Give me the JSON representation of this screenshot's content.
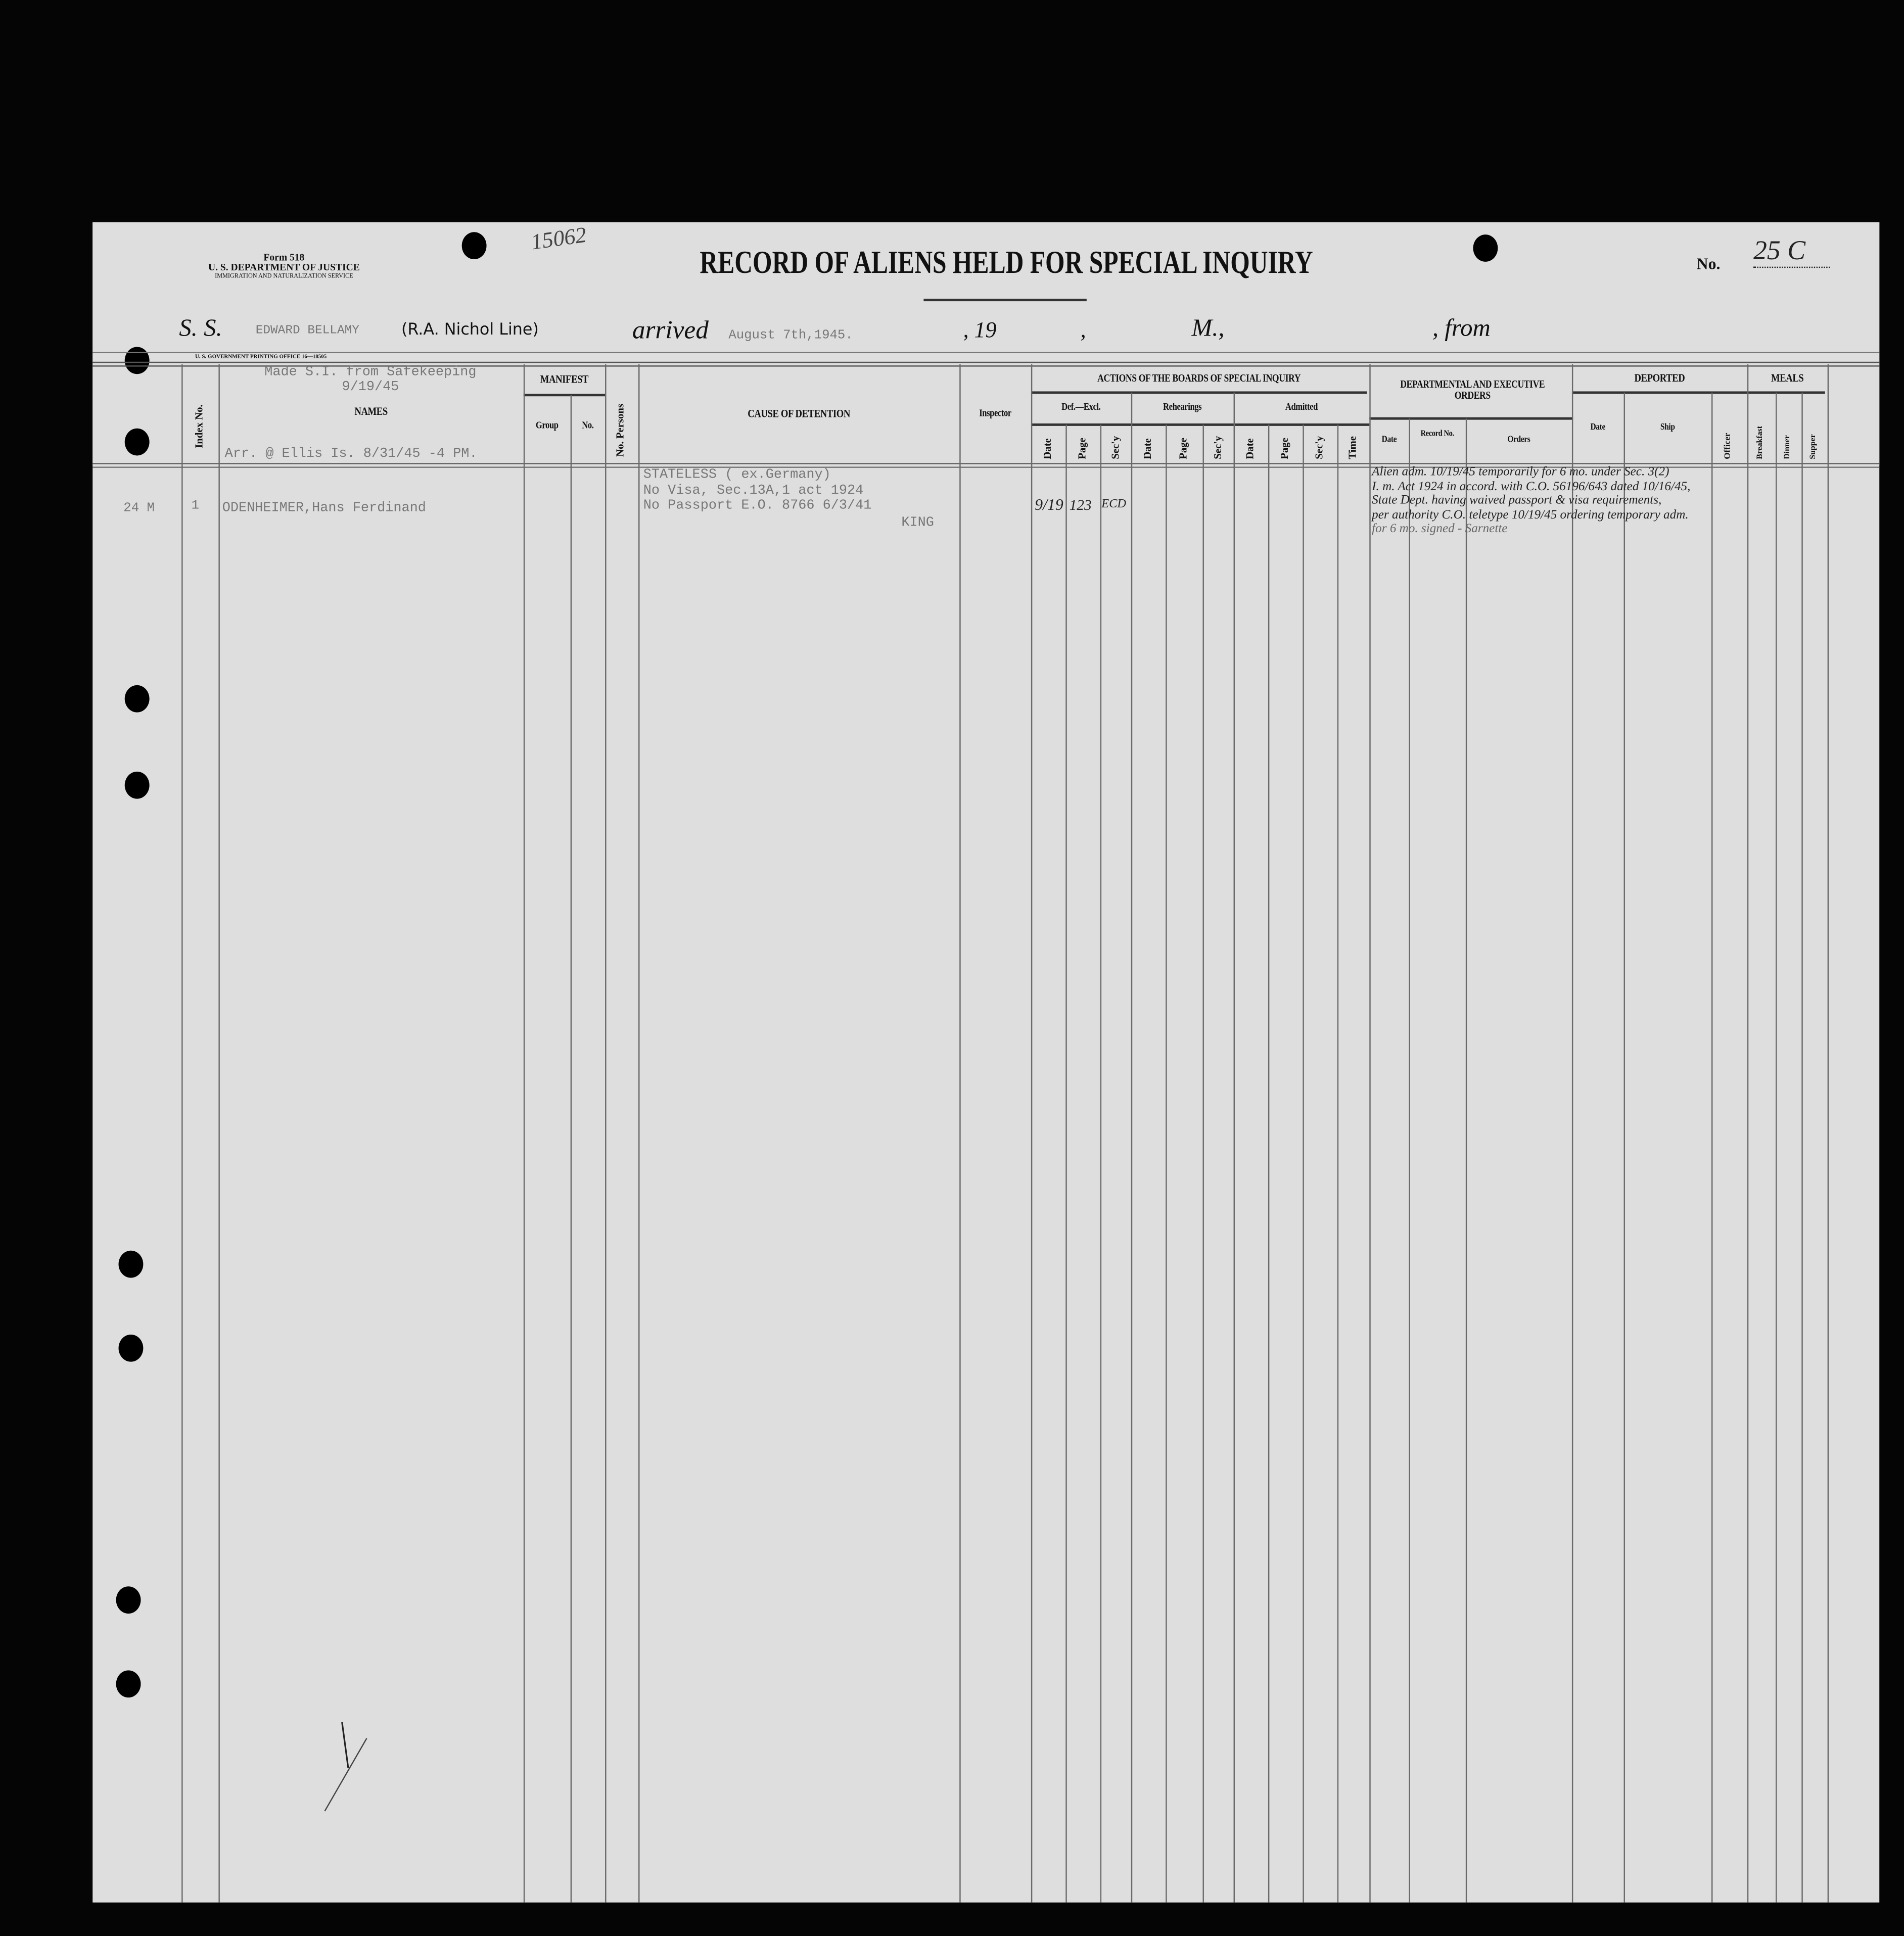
{
  "form": {
    "number": "Form 518",
    "department": "U. S. DEPARTMENT OF JUSTICE",
    "service": "IMMIGRATION AND NATURALIZATION SERVICE",
    "printing_office": "U. S. GOVERNMENT PRINTING OFFICE    16—18505"
  },
  "title": "RECORD OF ALIENS HELD FOR SPECIAL INQUIRY",
  "record_no_label": "No.",
  "record_no": "25 C",
  "file_number": "15062",
  "ship_line": {
    "ss_label": "S. S.",
    "ship": "EDWARD BELLAMY",
    "line_handwritten": "(R.A. Nichol Line)",
    "arrived_label": "arrived",
    "arrived_date": "August 7th,1945.",
    "year_label": ", 19",
    ",comma": ",",
    "m_label": "M.,",
    "from_label": ", from"
  },
  "headers": {
    "index_no": "Index No.",
    "names": "NAMES",
    "manifest": "MANIFEST",
    "group": "Group",
    "no": "No.",
    "no_persons": "No. Persons",
    "cause": "CAUSE OF DETENTION",
    "inspector": "Inspector",
    "actions": "ACTIONS OF THE BOARDS OF SPECIAL INQUIRY",
    "def_excl": "Def.—Excl.",
    "rehearings": "Rehearings",
    "admitted": "Admitted",
    "sub": [
      "Date",
      "Page",
      "Sec'y",
      "Date",
      "Page",
      "Sec'y",
      "Date",
      "Page",
      "Sec'y",
      "Time"
    ],
    "dept": "DEPARTMENTAL AND EXECUTIVE ORDERS",
    "dept_date": "Date",
    "record_no": "Record No.",
    "orders": "Orders",
    "deported": "DEPORTED",
    "dep_date": "Date",
    "ship": "Ship",
    "officer": "Officer",
    "meals": "MEALS",
    "breakfast": "Breakfast",
    "dinner": "Dinner",
    "supper": "Supper"
  },
  "notes": {
    "made_si": "Made S.I. from Safekeeping",
    "made_si_date": "9/19/45",
    "arrival": "Arr. @ Ellis Is. 8/31/45 -4 PM."
  },
  "entries": [
    {
      "age_sex": "24 M",
      "index": "1",
      "name": "ODENHEIMER,Hans Ferdinand",
      "cause": [
        "STATELESS ( ex.Germany)",
        "No Visa, Sec.13A,1 act 1924",
        "No Passport E.O. 8766 6/3/41"
      ],
      "inspector": "KING",
      "bsi_date": "9/19",
      "bsi_page": "123",
      "bsi_secy": "ECD",
      "orders": [
        "Alien adm. 10/19/45 temporarily for 6 mo. under Sec. 3(2)",
        "I. m. Act 1924 in accord. with C.O. 56196/643 dated 10/16/45,",
        "State Dept. having waived passport & visa requirements,",
        "per authority C.O. teletype 10/19/45 ordering temporary adm.",
        "for 6 mo. signed - Sarnette"
      ]
    }
  ]
}
